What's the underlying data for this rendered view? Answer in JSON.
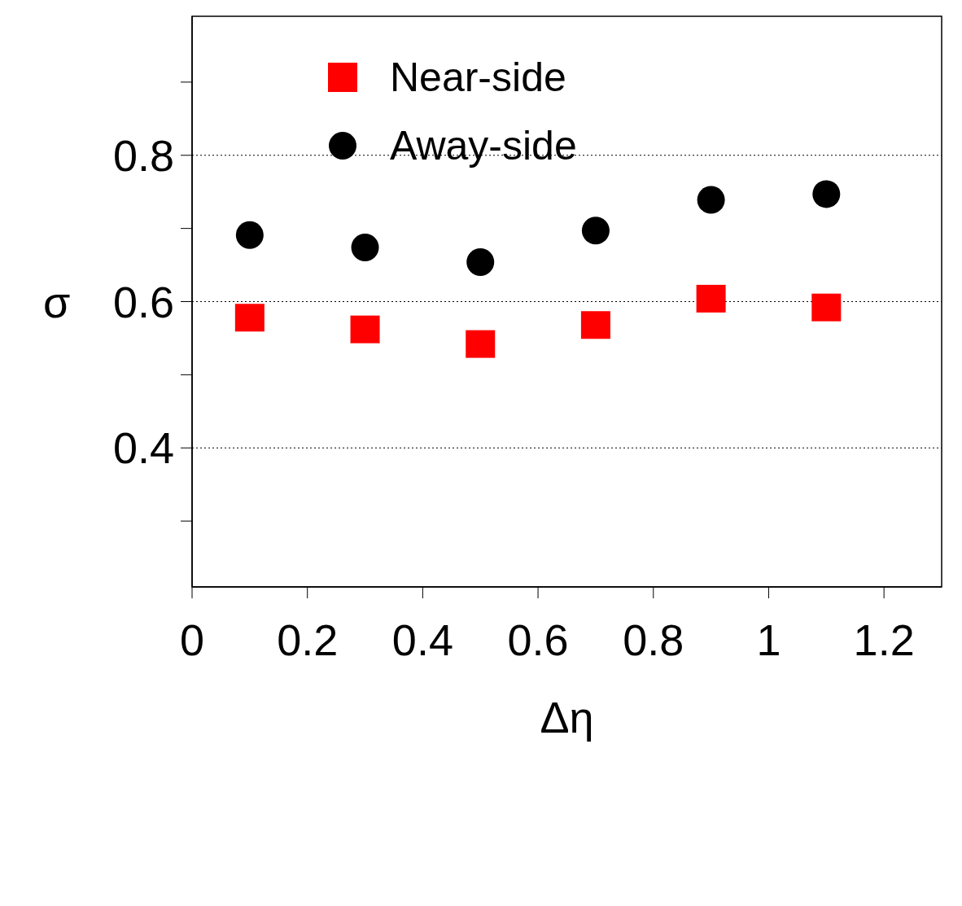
{
  "chart_data": {
    "type": "scatter",
    "xlabel": "Δη",
    "ylabel": "σ",
    "x": [
      0.1,
      0.3,
      0.5,
      0.7,
      0.9,
      1.1
    ],
    "series": [
      {
        "name": "Near-side",
        "color": "#ff0000",
        "marker": "square",
        "values": [
          0.578,
          0.562,
          0.542,
          0.568,
          0.604,
          0.592
        ]
      },
      {
        "name": "Away-side",
        "color": "#000000",
        "marker": "circle",
        "values": [
          0.691,
          0.674,
          0.654,
          0.697,
          0.739,
          0.747
        ]
      }
    ],
    "xlim": [
      0,
      1.3
    ],
    "xticks": [
      0,
      0.2,
      0.4,
      0.6,
      0.8,
      1,
      1.2
    ],
    "ylim": [
      0.21,
      0.99
    ],
    "yticks": [
      {
        "value": 0.3,
        "label": null
      },
      0.4,
      {
        "value": 0.5,
        "label": null
      },
      0.6,
      {
        "value": 0.7,
        "label": null
      },
      0.8,
      {
        "value": 0.9,
        "label": null
      }
    ],
    "grid": "y",
    "legend": "top left"
  }
}
